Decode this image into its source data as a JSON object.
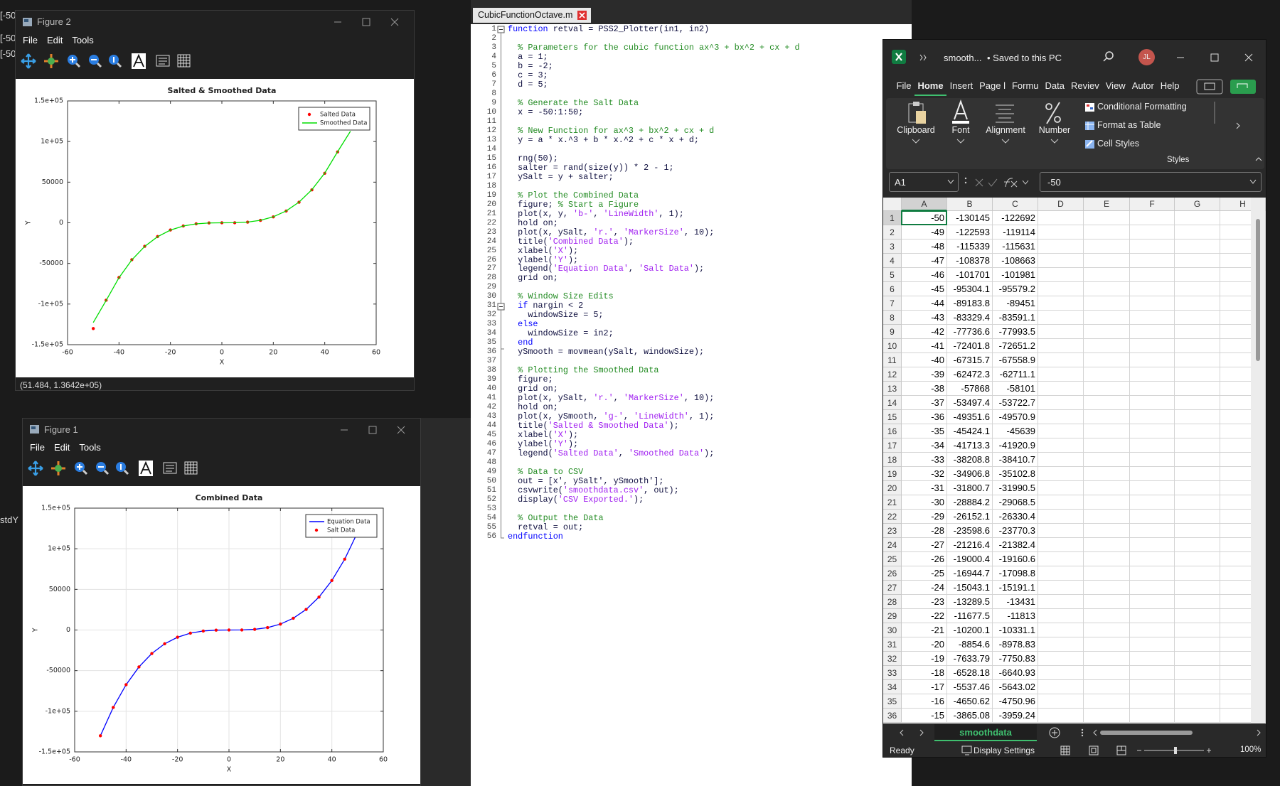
{
  "left_fragments": [
    "[-50",
    "[-50",
    "[-50",
    "stdY"
  ],
  "figures": [
    {
      "window_title": "Figure 2",
      "menu": [
        "File",
        "Edit",
        "Tools"
      ],
      "status": "(51.484, 1.3642e+05)",
      "chart": {
        "type": "line",
        "title": "Salted & Smoothed Data",
        "xlabel": "X",
        "ylabel": "Y",
        "x": [
          -50,
          -45,
          -40,
          -35,
          -30,
          -25,
          -20,
          -15,
          -10,
          -5,
          0,
          5,
          10,
          15,
          20,
          25,
          30,
          35,
          40,
          45,
          50
        ],
        "series": [
          {
            "name": "Salted Data",
            "color": "#ff0000",
            "style": "markers",
            "values": [
              -130145,
              -95304,
              -67316,
              -45424,
              -28884,
              -16945,
              -8855,
              -3865,
              -1225,
              -185,
              5,
              95,
              835,
              2975,
              7265,
              14455,
              25295,
              40535,
              60925,
              87215,
              120155
            ]
          },
          {
            "name": "Smoothed Data",
            "color": "#00dd00",
            "style": "line",
            "values": [
              -122692,
              -95579,
              -67559,
              -45639,
              -29069,
              -17099,
              -8979,
              -3959,
              -1289,
              -219,
              1,
              121,
              891,
              3061,
              7381,
              14601,
              25471,
              40741,
              61161,
              87481,
              112702
            ]
          }
        ],
        "xlim": [
          -60,
          60
        ],
        "xticks": [
          -60,
          -40,
          -20,
          0,
          20,
          40,
          60
        ],
        "ylim": [
          -150000,
          150000
        ],
        "yticks": [
          {
            "value": -150000,
            "label": "-1.5e+05"
          },
          {
            "value": -100000,
            "label": "-1e+05"
          },
          -50000,
          0,
          50000,
          {
            "value": 100000,
            "label": "1e+05"
          },
          {
            "value": 150000,
            "label": "1.5e+05"
          }
        ],
        "grid": false,
        "legend": "upper right"
      }
    },
    {
      "window_title": "Figure 1",
      "menu": [
        "File",
        "Edit",
        "Tools"
      ],
      "chart": {
        "type": "line",
        "title": "Combined Data",
        "xlabel": "X",
        "ylabel": "Y",
        "x": [
          -50,
          -45,
          -40,
          -35,
          -30,
          -25,
          -20,
          -15,
          -10,
          -5,
          0,
          5,
          10,
          15,
          20,
          25,
          30,
          35,
          40,
          45,
          50
        ],
        "series": [
          {
            "name": "Equation Data",
            "color": "#0000ff",
            "style": "line",
            "values": [
              -130145,
              -95305,
              -67315,
              -45425,
              -28885,
              -16945,
              -8855,
              -3865,
              -1225,
              -185,
              5,
              95,
              835,
              2975,
              7265,
              14455,
              25295,
              40535,
              60925,
              87215,
              120155
            ]
          },
          {
            "name": "Salt Data",
            "color": "#ff0000",
            "style": "markers",
            "values": [
              -130145,
              -95304,
              -67316,
              -45424,
              -28884,
              -16945,
              -8855,
              -3865,
              -1225,
              -185,
              5,
              95,
              835,
              2975,
              7265,
              14455,
              25295,
              40535,
              60925,
              87215,
              120155
            ]
          }
        ],
        "xlim": [
          -60,
          60
        ],
        "xticks": [
          -60,
          -40,
          -20,
          0,
          20,
          40,
          60
        ],
        "ylim": [
          -150000,
          150000
        ],
        "yticks": [
          {
            "value": -150000,
            "label": "-1.5e+05"
          },
          {
            "value": -100000,
            "label": "-1e+05"
          },
          -50000,
          0,
          50000,
          {
            "value": 100000,
            "label": "1e+05"
          },
          {
            "value": 150000,
            "label": "1.5e+05"
          }
        ],
        "grid": true,
        "legend": "upper right"
      }
    }
  ],
  "editor": {
    "tab": "CubicFunctionOctave.m",
    "keywords": [
      "function",
      "if",
      "else",
      "end",
      "endfunction"
    ],
    "lines": [
      {
        "n": 1,
        "code": "function retval = PSS2_Plotter(in1, in2)"
      },
      {
        "n": 2
      },
      {
        "n": 3,
        "code": "  % Parameters for the cubic function ax^3 + bx^2 + cx + d"
      },
      {
        "n": 4,
        "code": "  a = 1;"
      },
      {
        "n": 5,
        "code": "  b = -2;"
      },
      {
        "n": 6,
        "code": "  c = 3;"
      },
      {
        "n": 7,
        "code": "  d = 5;"
      },
      {
        "n": 8
      },
      {
        "n": 9,
        "code": "  % Generate the Salt Data"
      },
      {
        "n": 10,
        "code": "  x = -50:1:50;"
      },
      {
        "n": 11
      },
      {
        "n": 12,
        "code": "  % New Function for ax^3 + bx^2 + cx + d"
      },
      {
        "n": 13,
        "code": "  y = a * x.^3 + b * x.^2 + c * x + d;"
      },
      {
        "n": 14
      },
      {
        "n": 15,
        "code": "  rng(50);"
      },
      {
        "n": 16,
        "code": "  salter = rand(size(y)) * 2 - 1;"
      },
      {
        "n": 17,
        "code": "  ySalt = y + salter;"
      },
      {
        "n": 18
      },
      {
        "n": 19,
        "code": "  % Plot the Combined Data"
      },
      {
        "n": 20,
        "code": "  figure; % Start a Figure"
      },
      {
        "n": 21,
        "code": "  plot(x, y, 'b-', 'LineWidth', 1);"
      },
      {
        "n": 22,
        "code": "  hold on;"
      },
      {
        "n": 23,
        "code": "  plot(x, ySalt, 'r.', 'MarkerSize', 10);"
      },
      {
        "n": 24,
        "code": "  title('Combined Data');"
      },
      {
        "n": 25,
        "code": "  xlabel('X');"
      },
      {
        "n": 26,
        "code": "  ylabel('Y');"
      },
      {
        "n": 27,
        "code": "  legend('Equation Data', 'Salt Data');"
      },
      {
        "n": 28,
        "code": "  grid on;"
      },
      {
        "n": 29
      },
      {
        "n": 30,
        "code": "  % Window Size Edits"
      },
      {
        "n": 31,
        "code": "  if nargin < 2"
      },
      {
        "n": 32,
        "code": "    windowSize = 5;"
      },
      {
        "n": 33,
        "code": "  else"
      },
      {
        "n": 34,
        "code": "    windowSize = in2;"
      },
      {
        "n": 35,
        "code": "  end"
      },
      {
        "n": 36,
        "code": "  ySmooth = movmean(ySalt, windowSize);"
      },
      {
        "n": 37
      },
      {
        "n": 38,
        "code": "  % Plotting the Smoothed Data"
      },
      {
        "n": 39,
        "code": "  figure;"
      },
      {
        "n": 40,
        "code": "  grid on;"
      },
      {
        "n": 41,
        "code": "  plot(x, ySalt, 'r.', 'MarkerSize', 10);"
      },
      {
        "n": 42,
        "code": "  hold on;"
      },
      {
        "n": 43,
        "code": "  plot(x, ySmooth, 'g-', 'LineWidth', 1);"
      },
      {
        "n": 44,
        "code": "  title('Salted & Smoothed Data');"
      },
      {
        "n": 45,
        "code": "  xlabel('X');"
      },
      {
        "n": 46,
        "code": "  ylabel('Y');"
      },
      {
        "n": 47,
        "code": "  legend('Salted Data', 'Smoothed Data');"
      },
      {
        "n": 48
      },
      {
        "n": 49,
        "code": "  % Data to CSV"
      },
      {
        "n": 50,
        "code": "  out = [x', ySalt', ySmooth'];"
      },
      {
        "n": 51,
        "code": "  csvwrite('smoothdata.csv', out);"
      },
      {
        "n": 52,
        "code": "  display('CSV Exported.');"
      },
      {
        "n": 53
      },
      {
        "n": 54,
        "code": "  % Output the Data"
      },
      {
        "n": 55,
        "code": "  retval = out;"
      },
      {
        "n": 56,
        "code": "endfunction"
      }
    ]
  },
  "excel": {
    "file": "smooth...",
    "saved": "• Saved to this PC",
    "user": "JL",
    "tabs": [
      "File",
      "Home",
      "Insert",
      "Page l",
      "Formu",
      "Data",
      "Reviev",
      "View",
      "Autor",
      "Help"
    ],
    "active_tab": 1,
    "ribbon_groups": [
      "Clipboard",
      "Font",
      "Alignment",
      "Number"
    ],
    "styles_items": [
      "Conditional Formatting",
      "Format as Table",
      "Cell Styles"
    ],
    "styles_label": "Styles",
    "name_box": "A1",
    "formula": "-50",
    "columns": [
      "A",
      "B",
      "C",
      "D",
      "E",
      "F",
      "G",
      "H"
    ],
    "row_numbers": [
      1,
      2,
      3,
      4,
      5,
      6,
      7,
      8,
      9,
      10,
      11,
      12,
      13,
      14,
      15,
      16,
      17,
      18,
      19,
      20,
      21,
      22,
      23,
      24,
      25,
      26,
      27,
      28,
      29,
      30,
      31,
      32,
      33,
      34,
      35,
      36
    ],
    "rows": [
      [
        -50,
        -130145,
        -122692
      ],
      [
        -49,
        -122593,
        -119114
      ],
      [
        -48,
        -115339,
        -115631
      ],
      [
        -47,
        -108378,
        -108663
      ],
      [
        -46,
        -101701,
        -101981
      ],
      [
        -45,
        -95304.1,
        -95579.2
      ],
      [
        -44,
        -89183.8,
        -89451
      ],
      [
        -43,
        -83329.4,
        -83591.1
      ],
      [
        -42,
        -77736.6,
        -77993.5
      ],
      [
        -41,
        -72401.8,
        -72651.2
      ],
      [
        -40,
        -67315.7,
        -67558.9
      ],
      [
        -39,
        -62472.3,
        -62711.1
      ],
      [
        -38,
        -57868,
        -58101
      ],
      [
        -37,
        -53497.4,
        -53722.7
      ],
      [
        -36,
        -49351.6,
        -49570.9
      ],
      [
        -35,
        -45424.1,
        -45639
      ],
      [
        -34,
        -41713.3,
        -41920.9
      ],
      [
        -33,
        -38208.8,
        -38410.7
      ],
      [
        -32,
        -34906.8,
        -35102.8
      ],
      [
        -31,
        -31800.7,
        -31990.5
      ],
      [
        -30,
        -28884.2,
        -29068.5
      ],
      [
        -29,
        -26152.1,
        -26330.4
      ],
      [
        -28,
        -23598.6,
        -23770.3
      ],
      [
        -27,
        -21216.4,
        -21382.4
      ],
      [
        -26,
        -19000.4,
        -19160.6
      ],
      [
        -25,
        -16944.7,
        -17098.8
      ],
      [
        -24,
        -15043.1,
        -15191.1
      ],
      [
        -23,
        -13289.5,
        -13431
      ],
      [
        -22,
        -11677.5,
        -11813
      ],
      [
        -21,
        -10200.1,
        -10331.1
      ],
      [
        -20,
        -8854.6,
        -8978.83
      ],
      [
        -19,
        -7633.79,
        -7750.83
      ],
      [
        -18,
        -6528.18,
        -6640.93
      ],
      [
        -17,
        -5537.46,
        -5643.02
      ],
      [
        -16,
        -4650.62,
        -4750.96
      ],
      [
        -15,
        -3865.08,
        -3959.24
      ]
    ],
    "sheet": "smoothdata",
    "status": "Ready",
    "display_settings": "Display Settings",
    "zoom": "100%"
  }
}
